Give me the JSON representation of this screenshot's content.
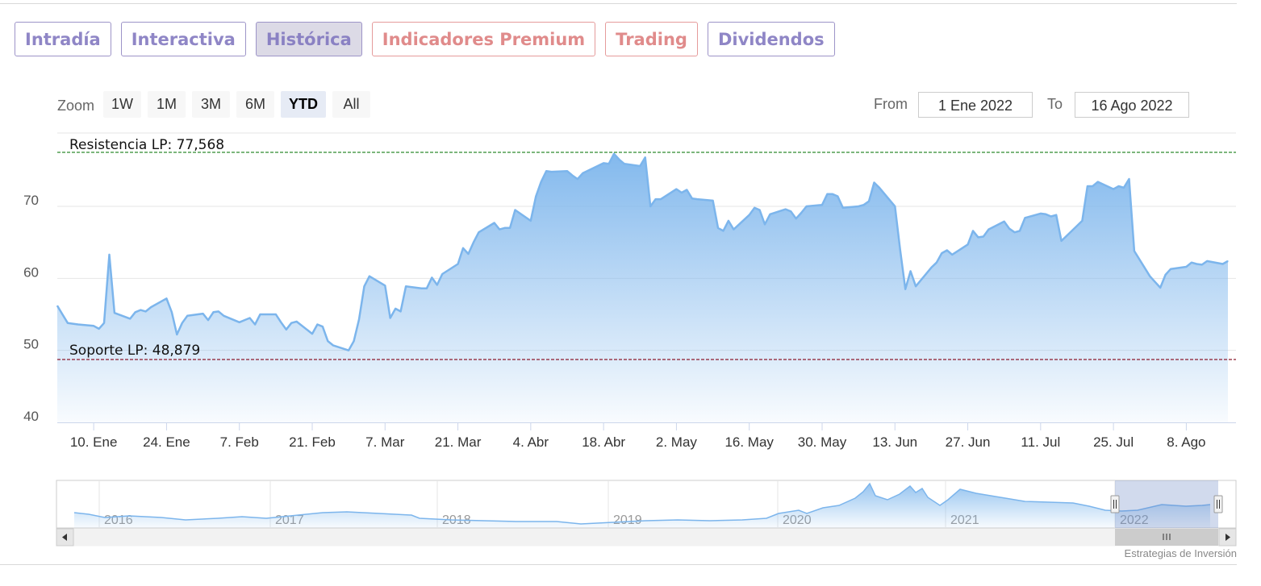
{
  "tabs": [
    {
      "label": "Intradía",
      "active": false,
      "premium": false
    },
    {
      "label": "Interactiva",
      "active": false,
      "premium": false
    },
    {
      "label": "Histórica",
      "active": true,
      "premium": false
    },
    {
      "label": "Indicadores Premium",
      "active": false,
      "premium": true
    },
    {
      "label": "Trading",
      "active": false,
      "premium": true
    },
    {
      "label": "Dividendos",
      "active": false,
      "premium": false
    }
  ],
  "range_selector": {
    "zoom_label": "Zoom",
    "buttons": [
      "1W",
      "1M",
      "3M",
      "6M",
      "YTD",
      "All"
    ],
    "selected": "YTD",
    "from_label": "From",
    "from_value": "1 Ene 2022",
    "to_label": "To",
    "to_value": "16 Ago 2022"
  },
  "chart_data": {
    "type": "area",
    "title": "",
    "xlabel": "",
    "ylabel": "",
    "x_start": "2022-01-03",
    "x_end": "2022-08-16",
    "ylim": [
      40,
      79
    ],
    "y_ticks": [
      40,
      50,
      60,
      70
    ],
    "x_tick_dates": [
      "2022-01-10",
      "2022-01-24",
      "2022-02-07",
      "2022-02-21",
      "2022-03-07",
      "2022-03-21",
      "2022-04-04",
      "2022-04-18",
      "2022-05-02",
      "2022-05-16",
      "2022-05-30",
      "2022-06-13",
      "2022-06-27",
      "2022-07-11",
      "2022-07-25",
      "2022-08-08"
    ],
    "x_tick_labels": [
      "10. Ene",
      "24. Ene",
      "7. Feb",
      "21. Feb",
      "7. Mar",
      "21. Mar",
      "4. Abr",
      "18. Abr",
      "2. May",
      "16. May",
      "30. May",
      "13. Jun",
      "27. Jun",
      "11. Jul",
      "25. Jul",
      "8. Ago"
    ],
    "resistance": {
      "label": "Resistencia LP: 77,568",
      "value": 77.568,
      "color": "#2e8b2e"
    },
    "support": {
      "label": "Soporte LP: 48,879",
      "value": 48.879,
      "color": "#8b1a2e"
    },
    "series": [
      {
        "color": "#7cb5ec",
        "dates": [
          "2022-01-03",
          "2022-01-04",
          "2022-01-05",
          "2022-01-06",
          "2022-01-07",
          "2022-01-10",
          "2022-01-11",
          "2022-01-12",
          "2022-01-13",
          "2022-01-14",
          "2022-01-17",
          "2022-01-18",
          "2022-01-19",
          "2022-01-20",
          "2022-01-21",
          "2022-01-24",
          "2022-01-25",
          "2022-01-26",
          "2022-01-27",
          "2022-01-28",
          "2022-01-31",
          "2022-02-01",
          "2022-02-02",
          "2022-02-03",
          "2022-02-04",
          "2022-02-07",
          "2022-02-08",
          "2022-02-09",
          "2022-02-10",
          "2022-02-11",
          "2022-02-14",
          "2022-02-15",
          "2022-02-16",
          "2022-02-17",
          "2022-02-18",
          "2022-02-21",
          "2022-02-22",
          "2022-02-23",
          "2022-02-24",
          "2022-02-25",
          "2022-02-28",
          "2022-03-01",
          "2022-03-02",
          "2022-03-03",
          "2022-03-04",
          "2022-03-07",
          "2022-03-08",
          "2022-03-09",
          "2022-03-10",
          "2022-03-11",
          "2022-03-14",
          "2022-03-15",
          "2022-03-16",
          "2022-03-17",
          "2022-03-18",
          "2022-03-21",
          "2022-03-22",
          "2022-03-23",
          "2022-03-24",
          "2022-03-25",
          "2022-03-28",
          "2022-03-29",
          "2022-03-30",
          "2022-03-31",
          "2022-04-01",
          "2022-04-04",
          "2022-04-05",
          "2022-04-06",
          "2022-04-07",
          "2022-04-08",
          "2022-04-11",
          "2022-04-12",
          "2022-04-13",
          "2022-04-14",
          "2022-04-18",
          "2022-04-19",
          "2022-04-20",
          "2022-04-21",
          "2022-04-22",
          "2022-04-25",
          "2022-04-26",
          "2022-04-27",
          "2022-04-28",
          "2022-04-29",
          "2022-05-02",
          "2022-05-03",
          "2022-05-04",
          "2022-05-05",
          "2022-05-06",
          "2022-05-09",
          "2022-05-10",
          "2022-05-11",
          "2022-05-12",
          "2022-05-13",
          "2022-05-16",
          "2022-05-17",
          "2022-05-18",
          "2022-05-19",
          "2022-05-20",
          "2022-05-23",
          "2022-05-24",
          "2022-05-25",
          "2022-05-26",
          "2022-05-27",
          "2022-05-30",
          "2022-05-31",
          "2022-06-01",
          "2022-06-02",
          "2022-06-03",
          "2022-06-06",
          "2022-06-07",
          "2022-06-08",
          "2022-06-09",
          "2022-06-10",
          "2022-06-13",
          "2022-06-14",
          "2022-06-15",
          "2022-06-16",
          "2022-06-17",
          "2022-06-20",
          "2022-06-21",
          "2022-06-22",
          "2022-06-23",
          "2022-06-24",
          "2022-06-27",
          "2022-06-28",
          "2022-06-29",
          "2022-06-30",
          "2022-07-01",
          "2022-07-04",
          "2022-07-05",
          "2022-07-06",
          "2022-07-07",
          "2022-07-08",
          "2022-07-11",
          "2022-07-12",
          "2022-07-13",
          "2022-07-14",
          "2022-07-15",
          "2022-07-18",
          "2022-07-19",
          "2022-07-20",
          "2022-07-21",
          "2022-07-22",
          "2022-07-25",
          "2022-07-26",
          "2022-07-27",
          "2022-07-28",
          "2022-07-29",
          "2022-08-01",
          "2022-08-02",
          "2022-08-03",
          "2022-08-04",
          "2022-08-05",
          "2022-08-08",
          "2022-08-09",
          "2022-08-10",
          "2022-08-11",
          "2022-08-12",
          "2022-08-15",
          "2022-08-16"
        ],
        "values": [
          56.2,
          55.0,
          53.8,
          53.7,
          53.6,
          53.4,
          53.0,
          53.8,
          63.3,
          55.2,
          54.4,
          55.3,
          55.6,
          55.4,
          56.0,
          57.2,
          55.3,
          52.2,
          53.8,
          54.8,
          55.1,
          54.2,
          55.3,
          55.4,
          54.8,
          53.9,
          54.2,
          54.5,
          53.6,
          55.0,
          55.0,
          53.9,
          52.9,
          53.8,
          54.0,
          52.3,
          53.6,
          53.3,
          51.3,
          50.7,
          50.0,
          51.3,
          54.3,
          58.9,
          60.3,
          59.0,
          54.5,
          55.8,
          55.4,
          58.9,
          58.6,
          58.6,
          60.1,
          59.1,
          60.6,
          62.0,
          64.2,
          63.4,
          65.0,
          66.4,
          67.7,
          66.8,
          67.0,
          67.0,
          69.5,
          68.0,
          71.4,
          73.4,
          74.9,
          74.8,
          74.9,
          74.3,
          73.8,
          74.6,
          76.0,
          75.9,
          77.3,
          76.5,
          75.9,
          75.6,
          76.8,
          70.0,
          71.0,
          71.0,
          72.4,
          71.9,
          72.3,
          71.1,
          71.0,
          70.8,
          67.0,
          66.6,
          68.0,
          66.8,
          68.8,
          69.8,
          69.5,
          67.5,
          68.9,
          69.6,
          69.3,
          68.3,
          69.1,
          70.0,
          70.2,
          71.7,
          71.7,
          71.4,
          69.8,
          70.0,
          70.2,
          70.7,
          73.3,
          72.6,
          70.0,
          64.0,
          58.5,
          61.0,
          58.9,
          61.5,
          62.2,
          63.5,
          63.9,
          63.3,
          64.7,
          66.6,
          65.7,
          65.8,
          66.8,
          67.9,
          66.9,
          66.4,
          66.6,
          68.4,
          69.0,
          68.9,
          68.6,
          68.8,
          65.2,
          67.3,
          68.0,
          72.8,
          72.8,
          73.4,
          72.4,
          72.8,
          72.6,
          73.8,
          63.8,
          60.3,
          59.5,
          58.7,
          60.5,
          61.3,
          61.6,
          62.2,
          62.0,
          61.9,
          62.4,
          62.0,
          62.4
        ]
      }
    ],
    "navigator": {
      "year_labels": [
        "2016",
        "2017",
        "2018",
        "2019",
        "2020",
        "2021",
        "2022"
      ]
    }
  },
  "credit": "Estrategias de Inversión"
}
